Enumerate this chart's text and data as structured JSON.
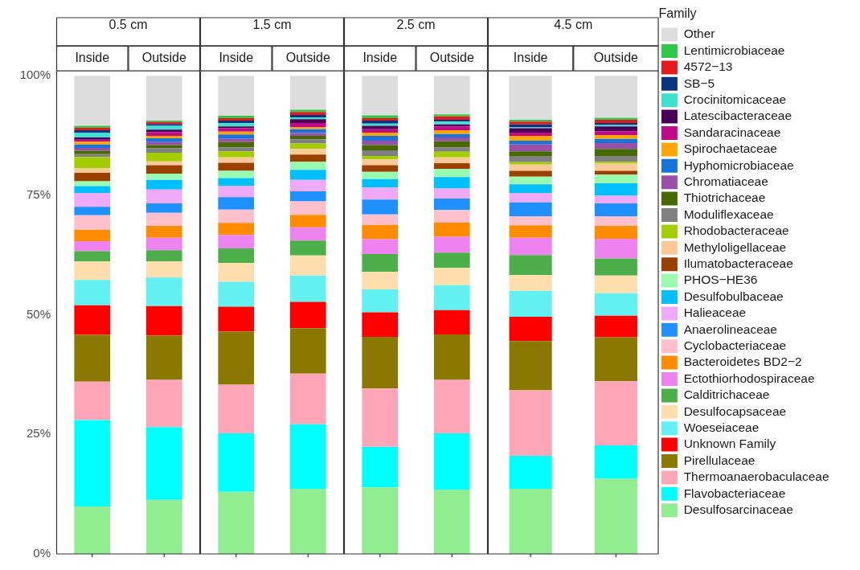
{
  "chart_data": [
    {
      "type": "bar",
      "title": "0.5 cm",
      "categories": [
        "Inside",
        "Outside"
      ],
      "stacked": true,
      "ylim": [
        0,
        101
      ],
      "yticks": [
        {
          "value": 0,
          "label": "0%"
        },
        {
          "value": 25,
          "label": "25%"
        },
        {
          "value": 50,
          "label": "50%"
        },
        {
          "value": 75,
          "label": "75%"
        },
        {
          "value": 100,
          "label": "100%"
        }
      ],
      "legend": false,
      "series": [
        {
          "color": "#90ee90",
          "values": [
            9.9,
            11.3
          ]
        },
        {
          "color": "#00ffff",
          "values": [
            18.1,
            15.2
          ]
        },
        {
          "color": "#ffa5b8",
          "values": [
            8.0,
            9.9
          ]
        },
        {
          "color": "#8b7800",
          "values": [
            9.8,
            9.3
          ]
        },
        {
          "color": "#ff0000",
          "values": [
            6.2,
            6.1
          ]
        },
        {
          "color": "#62f0f0",
          "values": [
            5.3,
            6.0
          ]
        },
        {
          "color": "#ffdead",
          "values": [
            3.9,
            3.4
          ]
        },
        {
          "color": "#4daf4a",
          "values": [
            2.1,
            2.3
          ]
        },
        {
          "color": "#ee82ee",
          "values": [
            2.1,
            2.6
          ]
        },
        {
          "color": "#ff8c00",
          "values": [
            2.4,
            2.5
          ]
        },
        {
          "color": "#ffc0cb",
          "values": [
            3.0,
            2.7
          ]
        },
        {
          "color": "#1e90ff",
          "values": [
            1.8,
            2.0
          ]
        },
        {
          "color": "#eeaaf8",
          "values": [
            2.9,
            2.9
          ]
        },
        {
          "color": "#00bfff",
          "values": [
            1.4,
            2.0
          ]
        },
        {
          "color": "#98fbb0",
          "values": [
            1.0,
            1.3
          ]
        },
        {
          "color": "#9a4100",
          "values": [
            1.8,
            1.8
          ]
        },
        {
          "color": "#fdc898",
          "values": [
            0.9,
            0.8
          ]
        },
        {
          "color": "#a3cd00",
          "values": [
            2.4,
            1.8
          ]
        },
        {
          "color": "#808080",
          "values": [
            0.6,
            0.9
          ]
        },
        {
          "color": "#466900",
          "values": [
            0.7,
            0.7
          ]
        },
        {
          "color": "#9850a8",
          "values": [
            0.6,
            0.6
          ]
        },
        {
          "color": "#1874d8",
          "values": [
            0.7,
            0.8
          ]
        },
        {
          "color": "#ffa500",
          "values": [
            0.6,
            0.5
          ]
        },
        {
          "color": "#c00a88",
          "values": [
            0.4,
            0.8
          ]
        },
        {
          "color": "#4b0058",
          "values": [
            0.5,
            0.5
          ]
        },
        {
          "color": "#40e0d0",
          "values": [
            1.0,
            0.8
          ]
        },
        {
          "color": "#0a3380",
          "values": [
            0.5,
            0.4
          ]
        },
        {
          "color": "#e41a1c",
          "values": [
            0.5,
            0.4
          ]
        },
        {
          "color": "#2ec84a",
          "values": [
            0.4,
            0.3
          ]
        },
        {
          "color": "#dddddd",
          "values": [
            10.5,
            9.4
          ]
        }
      ]
    },
    {
      "type": "bar",
      "title": "1.5 cm",
      "categories": [
        "Inside",
        "Outside"
      ],
      "stacked": true,
      "ylim": [
        0,
        101
      ],
      "tick_labels": "x",
      "legend": false,
      "series": [
        {
          "color": "#90ee90",
          "values": [
            13.0,
            13.6
          ]
        },
        {
          "color": "#00ffff",
          "values": [
            12.2,
            13.5
          ]
        },
        {
          "color": "#ffa5b8",
          "values": [
            10.2,
            10.6
          ]
        },
        {
          "color": "#8b7800",
          "values": [
            11.1,
            9.5
          ]
        },
        {
          "color": "#ff0000",
          "values": [
            5.2,
            5.5
          ]
        },
        {
          "color": "#62f0f0",
          "values": [
            5.2,
            5.5
          ]
        },
        {
          "color": "#ffdead",
          "values": [
            3.9,
            4.2
          ]
        },
        {
          "color": "#4daf4a",
          "values": [
            3.1,
            3.1
          ]
        },
        {
          "color": "#ee82ee",
          "values": [
            2.8,
            2.8
          ]
        },
        {
          "color": "#ff8c00",
          "values": [
            2.5,
            2.6
          ]
        },
        {
          "color": "#ffc0cb",
          "values": [
            2.8,
            2.8
          ]
        },
        {
          "color": "#1e90ff",
          "values": [
            2.6,
            2.1
          ]
        },
        {
          "color": "#eeaaf8",
          "values": [
            2.3,
            2.4
          ]
        },
        {
          "color": "#00bfff",
          "values": [
            1.7,
            2.1
          ]
        },
        {
          "color": "#98fbb0",
          "values": [
            1.5,
            1.7
          ]
        },
        {
          "color": "#9a4100",
          "values": [
            1.7,
            1.5
          ]
        },
        {
          "color": "#fdc898",
          "values": [
            1.1,
            1.2
          ]
        },
        {
          "color": "#a3cd00",
          "values": [
            1.3,
            1.1
          ]
        },
        {
          "color": "#808080",
          "values": [
            0.8,
            0.9
          ]
        },
        {
          "color": "#466900",
          "values": [
            1.1,
            0.7
          ]
        },
        {
          "color": "#9850a8",
          "values": [
            0.7,
            0.6
          ]
        },
        {
          "color": "#1874d8",
          "values": [
            0.9,
            0.8
          ]
        },
        {
          "color": "#ffa500",
          "values": [
            0.6,
            0.4
          ]
        },
        {
          "color": "#c00a88",
          "values": [
            0.7,
            0.9
          ]
        },
        {
          "color": "#4b0058",
          "values": [
            0.4,
            0.8
          ]
        },
        {
          "color": "#40e0d0",
          "values": [
            0.7,
            0.4
          ]
        },
        {
          "color": "#0a3380",
          "values": [
            0.5,
            0.5
          ]
        },
        {
          "color": "#e41a1c",
          "values": [
            0.5,
            0.6
          ]
        },
        {
          "color": "#2ec84a",
          "values": [
            0.5,
            0.5
          ]
        },
        {
          "color": "#dddddd",
          "values": [
            8.4,
            7.1
          ]
        }
      ]
    },
    {
      "type": "bar",
      "title": "2.5 cm",
      "categories": [
        "Inside",
        "Outside"
      ],
      "stacked": true,
      "ylim": [
        0,
        101
      ],
      "tick_labels": "x",
      "legend": false,
      "series": [
        {
          "color": "#90ee90",
          "values": [
            13.9,
            13.4
          ]
        },
        {
          "color": "#00ffff",
          "values": [
            8.5,
            11.8
          ]
        },
        {
          "color": "#ffa5b8",
          "values": [
            12.2,
            11.2
          ]
        },
        {
          "color": "#8b7800",
          "values": [
            10.8,
            9.5
          ]
        },
        {
          "color": "#ff0000",
          "values": [
            5.1,
            5.1
          ]
        },
        {
          "color": "#62f0f0",
          "values": [
            4.8,
            5.2
          ]
        },
        {
          "color": "#ffdead",
          "values": [
            3.7,
            3.6
          ]
        },
        {
          "color": "#4daf4a",
          "values": [
            3.7,
            3.2
          ]
        },
        {
          "color": "#ee82ee",
          "values": [
            3.1,
            3.3
          ]
        },
        {
          "color": "#ff8c00",
          "values": [
            3.0,
            3.0
          ]
        },
        {
          "color": "#ffc0cb",
          "values": [
            2.2,
            2.6
          ]
        },
        {
          "color": "#1e90ff",
          "values": [
            3.1,
            2.4
          ]
        },
        {
          "color": "#eeaaf8",
          "values": [
            2.5,
            2.1
          ]
        },
        {
          "color": "#00bfff",
          "values": [
            1.8,
            2.4
          ]
        },
        {
          "color": "#98fbb0",
          "values": [
            1.5,
            1.7
          ]
        },
        {
          "color": "#9a4100",
          "values": [
            1.4,
            1.2
          ]
        },
        {
          "color": "#fdc898",
          "values": [
            1.2,
            1.2
          ]
        },
        {
          "color": "#a3cd00",
          "values": [
            0.7,
            1.2
          ]
        },
        {
          "color": "#808080",
          "values": [
            1.2,
            0.9
          ]
        },
        {
          "color": "#466900",
          "values": [
            1.1,
            1.3
          ]
        },
        {
          "color": "#9850a8",
          "values": [
            0.9,
            0.8
          ]
        },
        {
          "color": "#1874d8",
          "values": [
            1.0,
            0.7
          ]
        },
        {
          "color": "#ffa500",
          "values": [
            0.7,
            0.8
          ]
        },
        {
          "color": "#c00a88",
          "values": [
            0.7,
            0.8
          ]
        },
        {
          "color": "#4b0058",
          "values": [
            0.7,
            0.4
          ]
        },
        {
          "color": "#40e0d0",
          "values": [
            0.5,
            0.6
          ]
        },
        {
          "color": "#0a3380",
          "values": [
            0.6,
            0.4
          ]
        },
        {
          "color": "#e41a1c",
          "values": [
            0.5,
            0.7
          ]
        },
        {
          "color": "#2ec84a",
          "values": [
            0.6,
            0.4
          ]
        },
        {
          "color": "#dddddd",
          "values": [
            8.3,
            8.1
          ]
        }
      ]
    },
    {
      "type": "bar",
      "title": "4.5 cm",
      "categories": [
        "Inside",
        "Outside"
      ],
      "stacked": true,
      "ylim": [
        0,
        101
      ],
      "tick_labels": "x",
      "legend": "right",
      "legend_title": "Family",
      "series": [
        {
          "name": "Desulfosarcinaceae",
          "color": "#90ee90",
          "values": [
            13.6,
            15.7
          ]
        },
        {
          "name": "Flavobacteriaceae",
          "color": "#00ffff",
          "values": [
            6.9,
            7.0
          ]
        },
        {
          "name": "Thermoanaerobaculaceae",
          "color": "#ffa5b8",
          "values": [
            13.7,
            13.4
          ]
        },
        {
          "name": "Pirellulaceae",
          "color": "#8b7800",
          "values": [
            10.3,
            9.2
          ]
        },
        {
          "name": "Unknown Family",
          "color": "#ff0000",
          "values": [
            5.1,
            4.5
          ]
        },
        {
          "name": "Woeseiaceae",
          "color": "#62f0f0",
          "values": [
            5.4,
            4.7
          ]
        },
        {
          "name": "Desulfocapsaceae",
          "color": "#ffdead",
          "values": [
            3.3,
            3.7
          ]
        },
        {
          "name": "Calditrichaceae",
          "color": "#4daf4a",
          "values": [
            4.2,
            3.6
          ]
        },
        {
          "name": "Ectothiorhodospiraceae",
          "color": "#ee82ee",
          "values": [
            3.6,
            4.1
          ]
        },
        {
          "name": "Bacteroidetes BD2−2",
          "color": "#ff8c00",
          "values": [
            2.6,
            2.7
          ]
        },
        {
          "name": "Cyclobacteriaceae",
          "color": "#ffc0cb",
          "values": [
            1.9,
            2.0
          ]
        },
        {
          "name": "Anaerolineaceae",
          "color": "#1e90ff",
          "values": [
            2.9,
            2.7
          ]
        },
        {
          "name": "Halieaceae",
          "color": "#eeaaf8",
          "values": [
            2.0,
            1.6
          ]
        },
        {
          "name": "Desulfobulbaceae",
          "color": "#00bfff",
          "values": [
            1.8,
            2.6
          ]
        },
        {
          "name": "PHOS−HE36",
          "color": "#98fbb0",
          "values": [
            1.6,
            1.8
          ]
        },
        {
          "name": "Ilumatobacteraceae",
          "color": "#9a4100",
          "values": [
            1.2,
            0.8
          ]
        },
        {
          "name": "Methyloligellaceae",
          "color": "#fdc898",
          "values": [
            1.3,
            1.5
          ]
        },
        {
          "name": "Rhodobacteraceae",
          "color": "#a3cd00",
          "values": [
            0.5,
            0.4
          ]
        },
        {
          "name": "Moduliflexaceae",
          "color": "#808080",
          "values": [
            1.2,
            1.2
          ]
        },
        {
          "name": "Thiotrichaceae",
          "color": "#466900",
          "values": [
            1.1,
            1.5
          ]
        },
        {
          "name": "Chromatiaceae",
          "color": "#9850a8",
          "values": [
            1.4,
            1.2
          ]
        },
        {
          "name": "Hyphomicrobiaceae",
          "color": "#1874d8",
          "values": [
            0.8,
            0.9
          ]
        },
        {
          "name": "Spirochaetaceae",
          "color": "#ffa500",
          "values": [
            1.0,
            0.8
          ]
        },
        {
          "name": "Sandaracinaceae",
          "color": "#c00a88",
          "values": [
            0.7,
            0.8
          ]
        },
        {
          "name": "Latescibacteraceae",
          "color": "#4b0058",
          "values": [
            0.9,
            1.0
          ]
        },
        {
          "name": "Crocinitomicaceae",
          "color": "#40e0d0",
          "values": [
            0.2,
            0.3
          ]
        },
        {
          "name": "SB−5",
          "color": "#0a3380",
          "values": [
            0.6,
            0.4
          ]
        },
        {
          "name": "4572−13",
          "color": "#e41a1c",
          "values": [
            0.6,
            0.7
          ]
        },
        {
          "name": "Lentimicrobiaceae",
          "color": "#2ec84a",
          "values": [
            0.4,
            0.4
          ]
        },
        {
          "name": "Other",
          "color": "#dddddd",
          "values": [
            9.2,
            8.8
          ]
        }
      ]
    }
  ]
}
